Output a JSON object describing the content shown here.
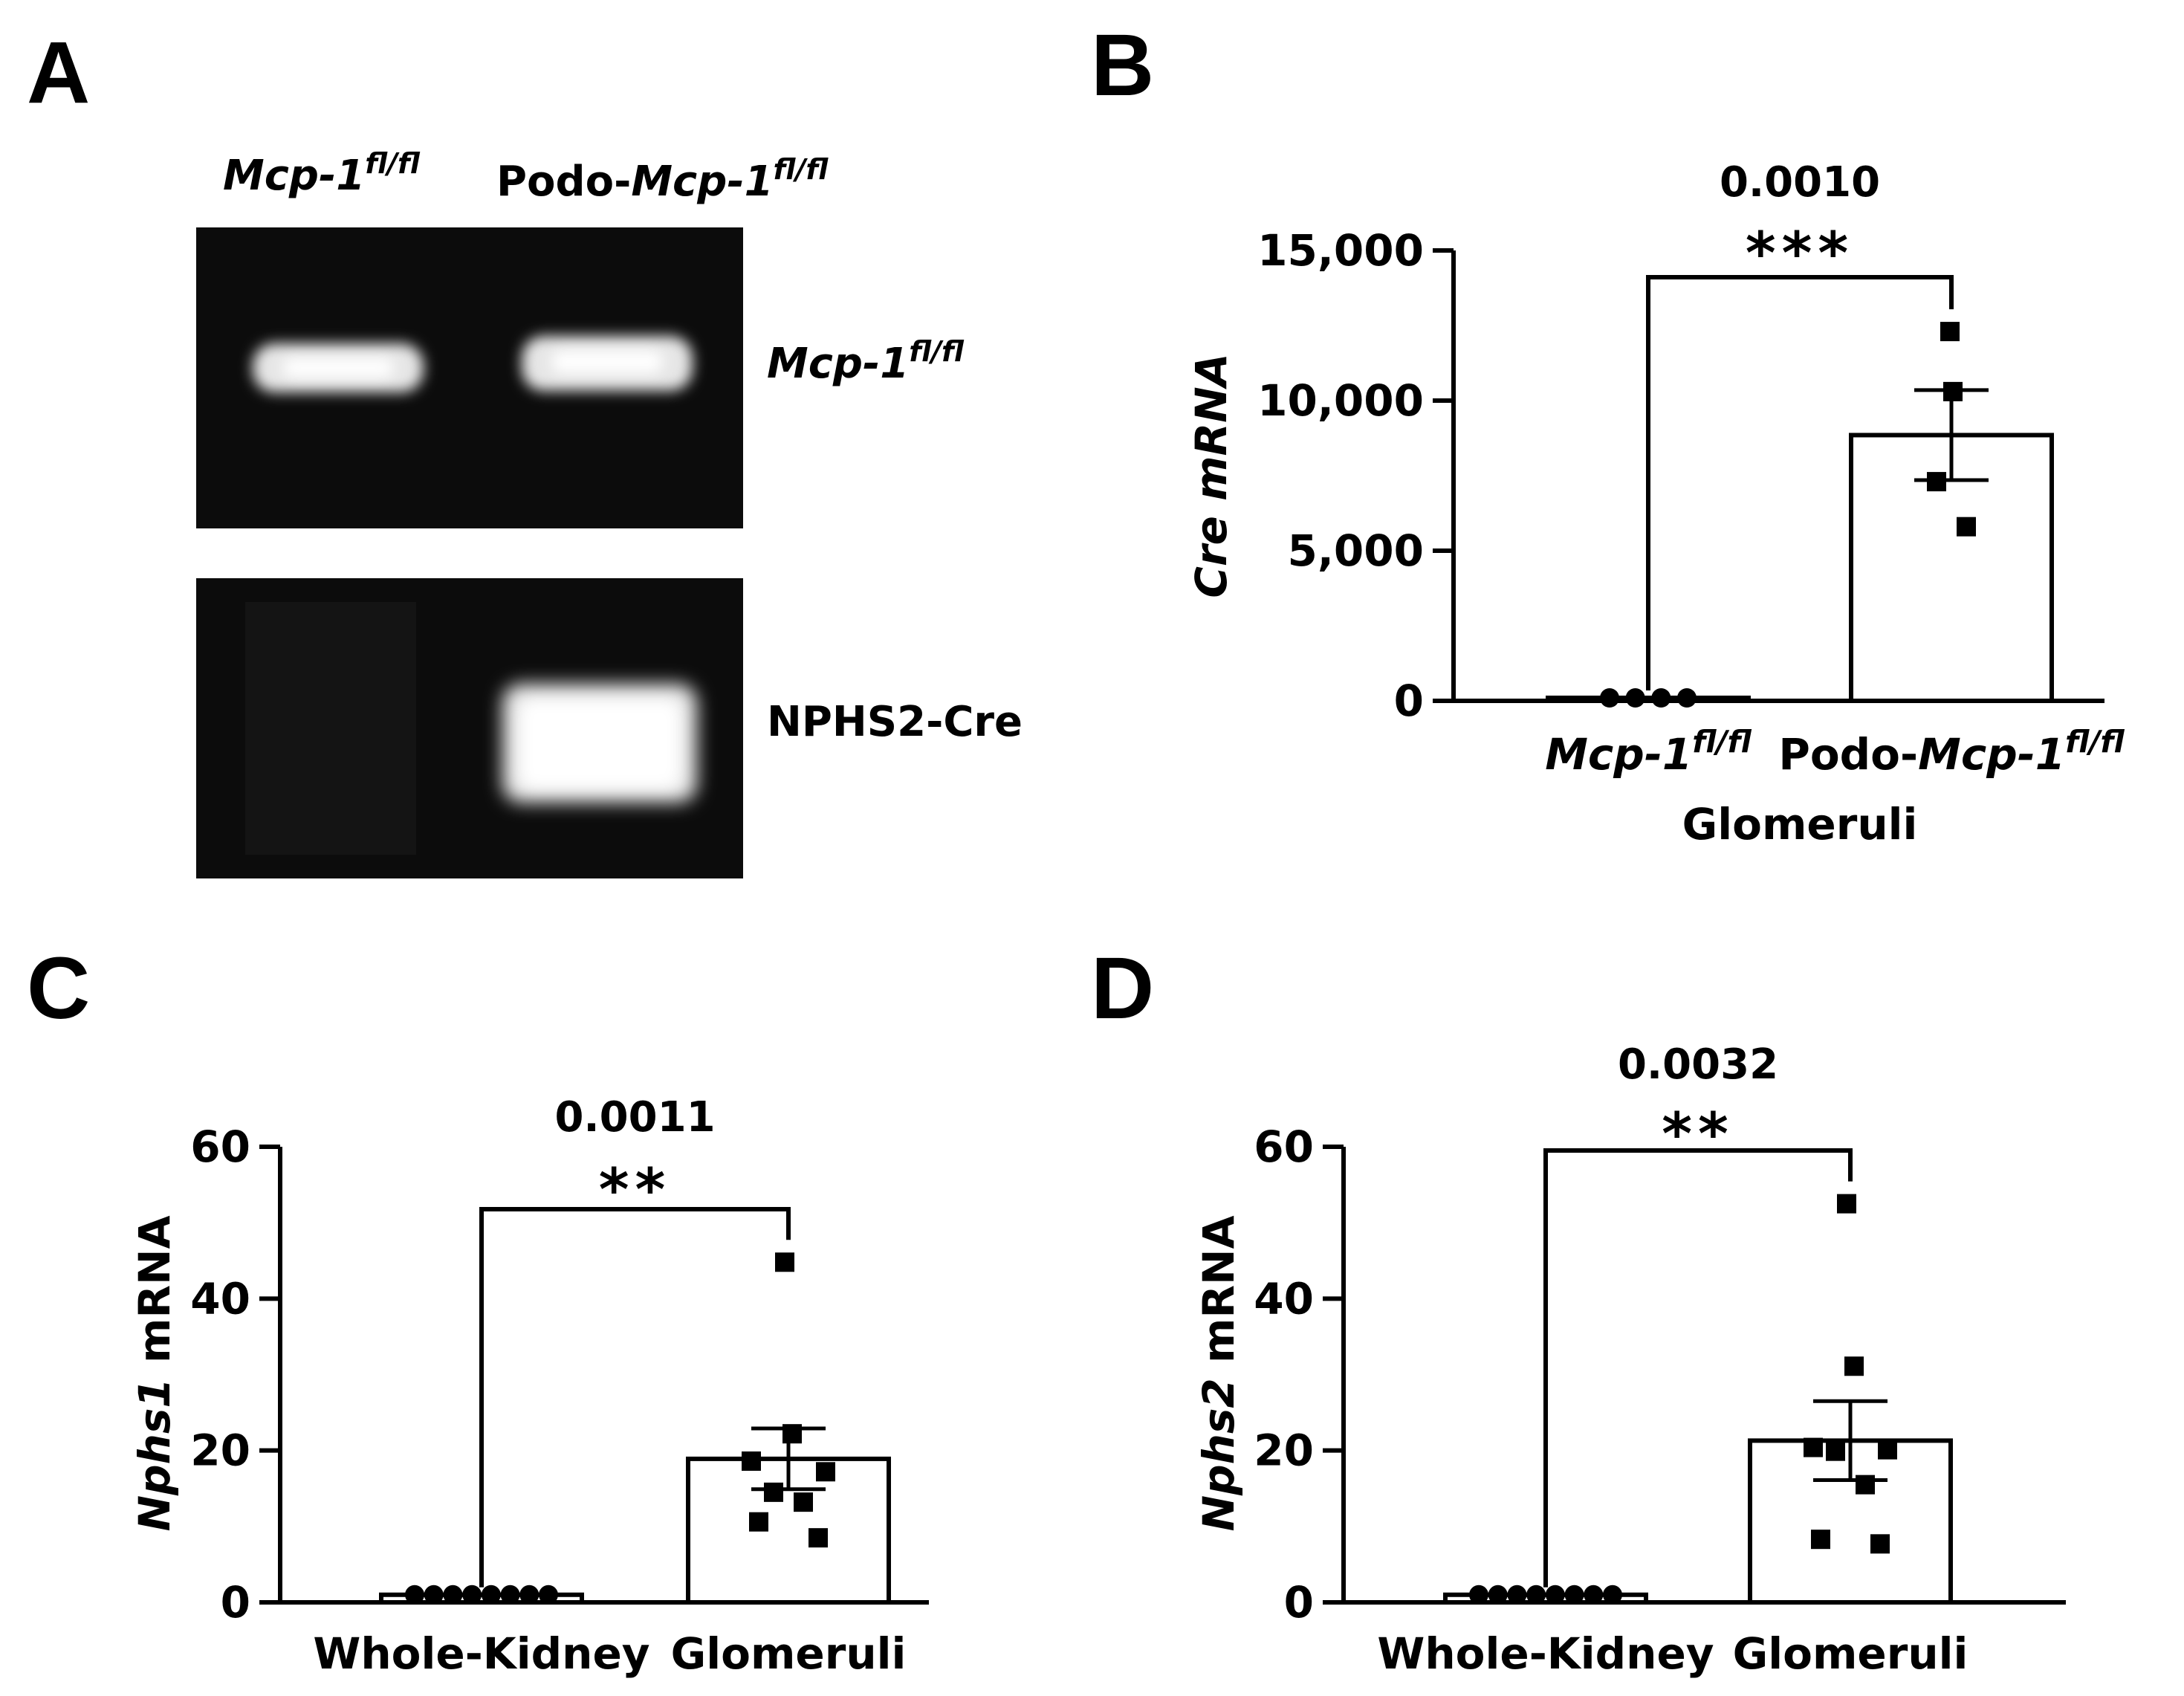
{
  "panel_letters": {
    "a": "A",
    "b": "B",
    "c": "C",
    "d": "D"
  },
  "gel": {
    "lane_labels": [
      {
        "italic": "Mcp-1",
        "sup": "fl/fl",
        "prefix": ""
      },
      {
        "prefix": "Podo-",
        "italic": "Mcp-1",
        "sup": "fl/fl"
      }
    ],
    "row_labels": [
      {
        "italic": "Mcp-1",
        "sup": "fl/fl"
      },
      {
        "plain": "NPHS2-Cre"
      }
    ]
  },
  "chart_data": [
    {
      "panel": "B",
      "type": "bar",
      "categories": [
        {
          "prefix": "",
          "italic": "Mcp-1",
          "sup": "fl/fl"
        },
        {
          "prefix": "Podo-",
          "italic": "Mcp-1",
          "sup": "fl/fl"
        }
      ],
      "xlabel": "Glomeruli",
      "ylabel": {
        "italic": "Cre mRNA",
        "plain": ""
      },
      "ylim": [
        0,
        15000
      ],
      "ticks": [
        0,
        5000,
        10000,
        15000
      ],
      "tick_labels": [
        "0",
        "5,000",
        "10,000",
        "15,000"
      ],
      "bars": [
        {
          "mean": 100,
          "sem": 0
        },
        {
          "mean": 8850,
          "sem": 1500
        }
      ],
      "points": [
        {
          "marker": "circle",
          "values": [
            0,
            0,
            0,
            0
          ]
        },
        {
          "marker": "square",
          "values": [
            12300,
            10300,
            7300,
            5800
          ]
        }
      ],
      "significance": {
        "p": "0.0010",
        "stars": "***"
      }
    },
    {
      "panel": "C",
      "type": "bar",
      "categories": [
        {
          "plain": "Whole-Kidney"
        },
        {
          "plain": "Glomeruli"
        }
      ],
      "xlabel": "",
      "ylabel": {
        "italic": "Nphs1",
        "plain": " mRNA"
      },
      "ylim": [
        0,
        60
      ],
      "ticks": [
        0,
        20,
        40,
        60
      ],
      "tick_labels": [
        "0",
        "20",
        "40",
        "60"
      ],
      "bars": [
        {
          "mean": 1,
          "sem": 0
        },
        {
          "mean": 18.9,
          "sem": 4
        }
      ],
      "points": [
        {
          "marker": "circle",
          "values": [
            1,
            1,
            1,
            1,
            1,
            1,
            1,
            1
          ]
        },
        {
          "marker": "square",
          "values": [
            44.8,
            22.2,
            18.6,
            17.2,
            14.5,
            13.2,
            10.6,
            8.5
          ]
        }
      ],
      "significance": {
        "p": "0.0011",
        "stars": "**"
      }
    },
    {
      "panel": "D",
      "type": "bar",
      "categories": [
        {
          "plain": "Whole-Kidney"
        },
        {
          "plain": "Glomeruli"
        }
      ],
      "xlabel": "",
      "ylabel": {
        "italic": "Nphs2",
        "plain": " mRNA"
      },
      "ylim": [
        0,
        60
      ],
      "ticks": [
        0,
        20,
        40,
        60
      ],
      "tick_labels": [
        "0",
        "20",
        "40",
        "60"
      ],
      "bars": [
        {
          "mean": 1,
          "sem": 0
        },
        {
          "mean": 21.3,
          "sem": 5.2
        }
      ],
      "points": [
        {
          "marker": "circle",
          "values": [
            1,
            1,
            1,
            1,
            1,
            1,
            1,
            1
          ]
        },
        {
          "marker": "square",
          "values": [
            52.5,
            31.1,
            20.4,
            20.1,
            19.9,
            15.5,
            8.3,
            7.7
          ]
        }
      ],
      "significance": {
        "p": "0.0032",
        "stars": "**"
      }
    }
  ]
}
